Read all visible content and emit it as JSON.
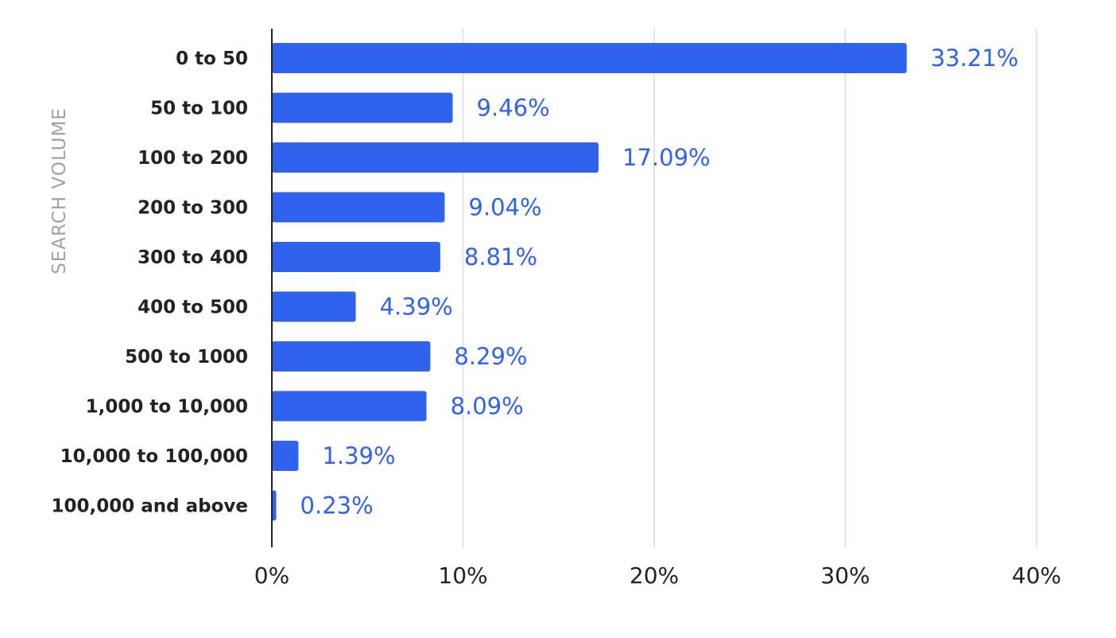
{
  "chart_data": {
    "type": "bar",
    "orientation": "horizontal",
    "ylabel": "SEARCH VOLUME",
    "xlabel": "",
    "categories": [
      "0 to 50",
      "50 to 100",
      "100 to 200",
      "200 to 300",
      "300 to 400",
      "400 to 500",
      "500 to 1000",
      "1,000 to 10,000",
      "10,000 to 100,000",
      "100,000 and above"
    ],
    "values": [
      33.21,
      9.46,
      17.09,
      9.04,
      8.81,
      4.39,
      8.29,
      8.09,
      1.39,
      0.23
    ],
    "value_labels": [
      "33.21%",
      "9.46%",
      "17.09%",
      "9.04%",
      "8.81%",
      "4.39%",
      "8.29%",
      "8.09%",
      "1.39%",
      "0.23%"
    ],
    "xlim": [
      0,
      40
    ],
    "xticks": [
      0,
      10,
      20,
      30,
      40
    ],
    "xtick_labels": [
      "0%",
      "10%",
      "20%",
      "30%",
      "40%"
    ],
    "grid": "vertical",
    "legend": "none",
    "colors": {
      "bar": "#2f63ee",
      "value_label": "#2f63ee",
      "grid": "#e3e3e3",
      "axis": "#222222",
      "axis_title": "#a2a2a2"
    }
  }
}
